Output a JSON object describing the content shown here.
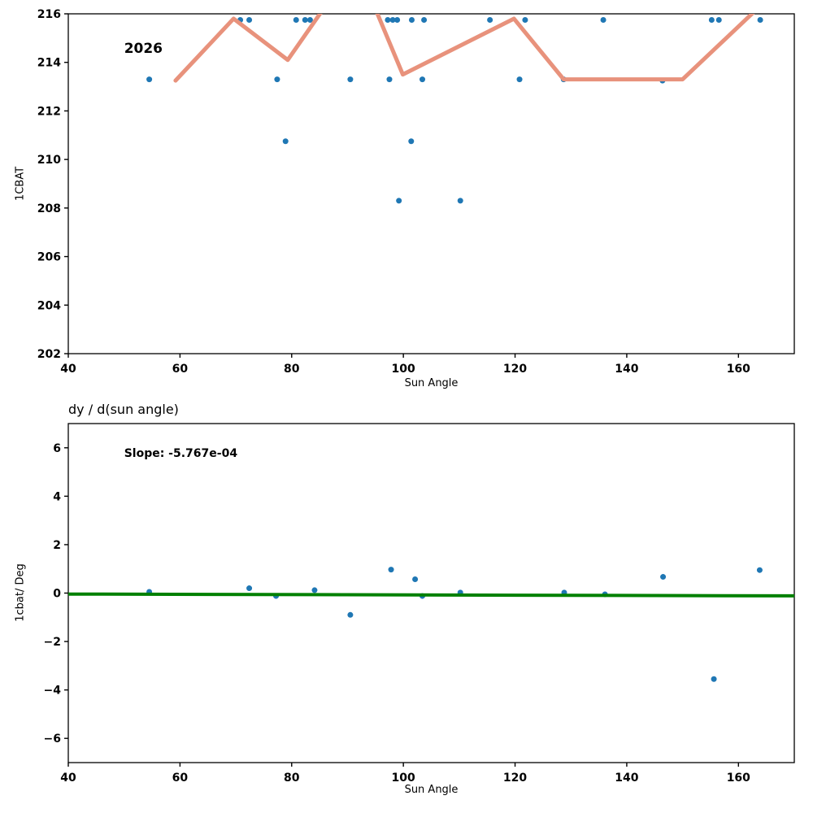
{
  "figure": {
    "background": "#ffffff",
    "scatter_color": "#1f77b4",
    "trend_color": "#e8927c",
    "fit_color": "#008000"
  },
  "chart_data": [
    {
      "type": "scatter",
      "title": "",
      "xlabel": "Sun Angle",
      "ylabel": "1CBAT",
      "xlim": [
        40,
        170
      ],
      "ylim": [
        202,
        216
      ],
      "xticks": [
        40,
        60,
        80,
        100,
        120,
        140,
        160
      ],
      "yticks": [
        202,
        204,
        206,
        208,
        210,
        212,
        214,
        216
      ],
      "grid": false,
      "legend": "none",
      "annotations": [
        {
          "text": "2026",
          "x": 50,
          "y": 214.55,
          "size": 17
        }
      ],
      "series": [
        {
          "name": "1cbat-measurements",
          "kind": "scatter",
          "color": "#1f77b4",
          "marker_radius": 3.5,
          "points": [
            [
              54.5,
              213.3
            ],
            [
              70.8,
              215.75
            ],
            [
              72.4,
              215.75
            ],
            [
              77.4,
              213.3
            ],
            [
              78.9,
              210.75
            ],
            [
              80.8,
              215.75
            ],
            [
              82.4,
              215.75
            ],
            [
              83.3,
              215.75
            ],
            [
              90.5,
              213.3
            ],
            [
              97.2,
              215.75
            ],
            [
              98.1,
              215.75
            ],
            [
              98.9,
              215.75
            ],
            [
              97.5,
              213.3
            ],
            [
              99.2,
              208.3
            ],
            [
              101.5,
              215.75
            ],
            [
              101.4,
              210.75
            ],
            [
              103.7,
              215.75
            ],
            [
              103.4,
              213.3
            ],
            [
              110.2,
              208.3
            ],
            [
              115.5,
              215.75
            ],
            [
              121.8,
              215.75
            ],
            [
              120.8,
              213.3
            ],
            [
              128.7,
              213.3
            ],
            [
              135.8,
              215.75
            ],
            [
              146.4,
              213.25
            ],
            [
              155.2,
              215.75
            ],
            [
              156.5,
              215.75
            ],
            [
              163.9,
              215.75
            ]
          ]
        },
        {
          "name": "trend-line",
          "kind": "line",
          "color": "#e8927c",
          "width": 5,
          "points": [
            [
              59.2,
              213.25
            ],
            [
              69.6,
              215.8
            ],
            [
              79.3,
              214.1
            ],
            [
              89.0,
              217.3
            ],
            [
              93.0,
              217.3
            ],
            [
              99.9,
              213.5
            ],
            [
              119.8,
              215.8
            ],
            [
              128.7,
              213.3
            ],
            [
              150.0,
              213.3
            ],
            [
              167.0,
              217.0
            ]
          ]
        }
      ]
    },
    {
      "type": "scatter",
      "title": "dy / d(sun angle)",
      "xlabel": "Sun Angle",
      "ylabel": "1cbat/ Deg",
      "xlim": [
        40,
        170
      ],
      "ylim": [
        -7,
        7
      ],
      "xticks": [
        40,
        60,
        80,
        100,
        120,
        140,
        160
      ],
      "yticks": [
        -6,
        -4,
        -2,
        0,
        2,
        4,
        6
      ],
      "grid": false,
      "legend": "none",
      "annotations": [
        {
          "text": "Slope: -5.767e-04",
          "x": 50,
          "y": 5.75,
          "size": 14
        }
      ],
      "series": [
        {
          "name": "derivative-points",
          "kind": "scatter",
          "color": "#1f77b4",
          "marker_radius": 3.5,
          "points": [
            [
              54.5,
              0.05
            ],
            [
              72.4,
              0.2
            ],
            [
              77.2,
              -0.12
            ],
            [
              84.1,
              0.12
            ],
            [
              90.5,
              -0.9
            ],
            [
              97.8,
              0.97
            ],
            [
              102.1,
              0.57
            ],
            [
              103.4,
              -0.12
            ],
            [
              110.2,
              0.02
            ],
            [
              128.8,
              0.02
            ],
            [
              136.1,
              -0.05
            ],
            [
              146.5,
              0.67
            ],
            [
              155.6,
              -3.55
            ],
            [
              163.8,
              0.95
            ]
          ]
        },
        {
          "name": "fit-line",
          "kind": "line",
          "color": "#008000",
          "width": 4,
          "points": [
            [
              40,
              -0.04
            ],
            [
              170,
              -0.115
            ]
          ]
        }
      ]
    }
  ]
}
